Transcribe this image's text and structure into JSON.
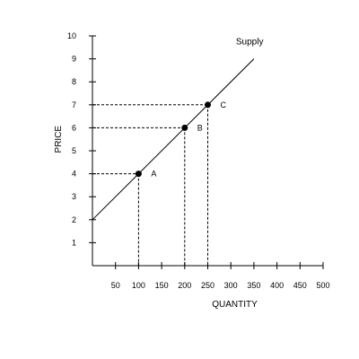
{
  "chart_data": {
    "type": "line",
    "title": "",
    "xlabel": "QUANTITY",
    "ylabel": "PRICE",
    "xlim": [
      0,
      500
    ],
    "ylim": [
      0,
      10
    ],
    "x_ticks": [
      50,
      100,
      150,
      200,
      250,
      300,
      350,
      400,
      450,
      500
    ],
    "y_ticks": [
      1,
      2,
      3,
      4,
      5,
      6,
      7,
      8,
      9,
      10
    ],
    "grid": false,
    "series": [
      {
        "name": "Supply",
        "x": [
          0,
          350
        ],
        "y": [
          2,
          9
        ],
        "color": "#000000"
      }
    ],
    "points": [
      {
        "label": "A",
        "x": 100,
        "y": 4
      },
      {
        "label": "B",
        "x": 200,
        "y": 6
      },
      {
        "label": "C",
        "x": 250,
        "y": 7
      }
    ],
    "guide_style": "dashed"
  }
}
